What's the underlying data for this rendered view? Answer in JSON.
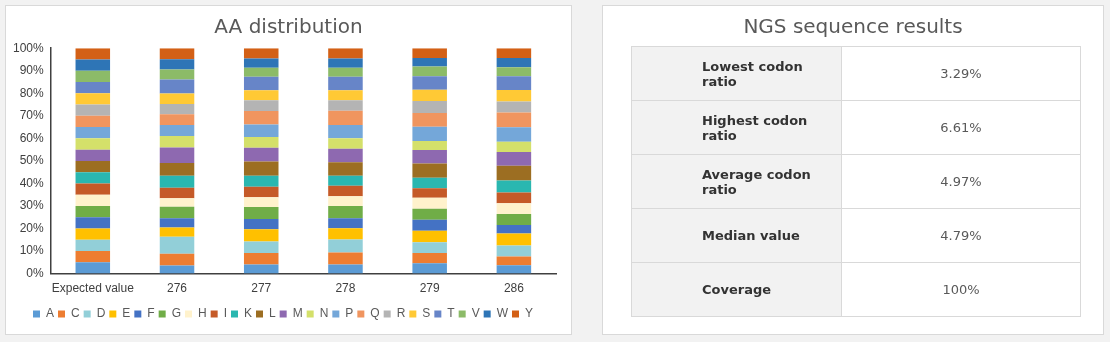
{
  "chart_data": [
    {
      "type": "bar",
      "title": "AA distribution",
      "stacked": true,
      "legend": "bottom",
      "grid": false,
      "categories": [
        "Expected value",
        "276",
        "277",
        "278",
        "279",
        "286"
      ],
      "ylim": [
        0,
        100
      ],
      "yticks": [
        {
          "value": 0,
          "label": "0%"
        },
        {
          "value": 10,
          "label": "10%"
        },
        {
          "value": 20,
          "label": "20%"
        },
        {
          "value": 30,
          "label": "30%"
        },
        {
          "value": 40,
          "label": "40%"
        },
        {
          "value": 50,
          "label": "50%"
        },
        {
          "value": 60,
          "label": "60%"
        },
        {
          "value": 70,
          "label": "70%"
        },
        {
          "value": 80,
          "label": "80%"
        },
        {
          "value": 90,
          "label": "90%"
        },
        {
          "value": 100,
          "label": "100%"
        }
      ],
      "series": [
        {
          "name": "A",
          "color": "#5b9bd5",
          "values": [
            5,
            3.6,
            4.0,
            4.0,
            4.6,
            3.7
          ]
        },
        {
          "name": "C",
          "color": "#ed7d31",
          "values": [
            5,
            5.2,
            5.1,
            5.4,
            4.5,
            3.9
          ]
        },
        {
          "name": "D",
          "color": "#92cfd8",
          "values": [
            5,
            7.6,
            5.1,
            5.7,
            4.8,
            4.9
          ]
        },
        {
          "name": "E",
          "color": "#ffc000",
          "values": [
            5,
            4.0,
            5.5,
            5.0,
            5.1,
            5.3
          ]
        },
        {
          "name": "F",
          "color": "#4472c4",
          "values": [
            5,
            4.2,
            4.5,
            4.5,
            4.9,
            3.8
          ]
        },
        {
          "name": "G",
          "color": "#70ad47",
          "values": [
            5,
            5.1,
            5.4,
            5.4,
            4.9,
            4.8
          ]
        },
        {
          "name": "H",
          "color": "#fff2cc",
          "values": [
            5,
            3.7,
            4.3,
            4.3,
            4.8,
            4.8
          ]
        },
        {
          "name": "I",
          "color": "#c55a28",
          "values": [
            5,
            4.7,
            4.6,
            4.7,
            4.3,
            4.8
          ]
        },
        {
          "name": "K",
          "color": "#2ab7b0",
          "values": [
            5,
            5.3,
            4.9,
            4.4,
            4.6,
            5.3
          ]
        },
        {
          "name": "L",
          "color": "#9c6e22",
          "values": [
            5,
            5.7,
            6.3,
            6.0,
            6.3,
            6.5
          ]
        },
        {
          "name": "M",
          "color": "#8e69b0",
          "values": [
            5,
            6.9,
            6.1,
            6.0,
            6.0,
            6.1
          ]
        },
        {
          "name": "N",
          "color": "#d4e06a",
          "values": [
            5,
            5.0,
            4.8,
            4.7,
            4.0,
            4.6
          ]
        },
        {
          "name": "P",
          "color": "#74a7d9",
          "values": [
            5,
            4.9,
            5.5,
            5.8,
            6.4,
            6.4
          ]
        },
        {
          "name": "Q",
          "color": "#f0955f",
          "values": [
            5,
            4.8,
            6.0,
            6.3,
            6.0,
            6.6
          ]
        },
        {
          "name": "R",
          "color": "#b4b4b4",
          "values": [
            5,
            4.5,
            4.8,
            4.7,
            5.4,
            4.9
          ]
        },
        {
          "name": "S",
          "color": "#ffc935",
          "values": [
            5,
            4.7,
            4.4,
            4.4,
            5.0,
            5.1
          ]
        },
        {
          "name": "T",
          "color": "#6785c8",
          "values": [
            5,
            6.2,
            6.0,
            6.0,
            6.0,
            6.1
          ]
        },
        {
          "name": "V",
          "color": "#8cbb68",
          "values": [
            5,
            4.5,
            4.0,
            4.0,
            4.3,
            4.0
          ]
        },
        {
          "name": "W",
          "color": "#2e75b6",
          "values": [
            5,
            4.5,
            4.1,
            4.1,
            3.8,
            4.1
          ]
        },
        {
          "name": "Y",
          "color": "#d36016",
          "values": [
            5,
            4.9,
            4.6,
            4.6,
            4.3,
            4.3
          ]
        }
      ]
    },
    {
      "type": "other",
      "title": "NGS sequence results",
      "categories": [
        "Lowest codon ratio",
        "Highest codon ratio",
        "Average codon ratio",
        "Median value",
        "Coverage"
      ],
      "value_labels": [
        "3.29%",
        "6.61%",
        "4.97%",
        "4.79%",
        "100%"
      ]
    }
  ]
}
